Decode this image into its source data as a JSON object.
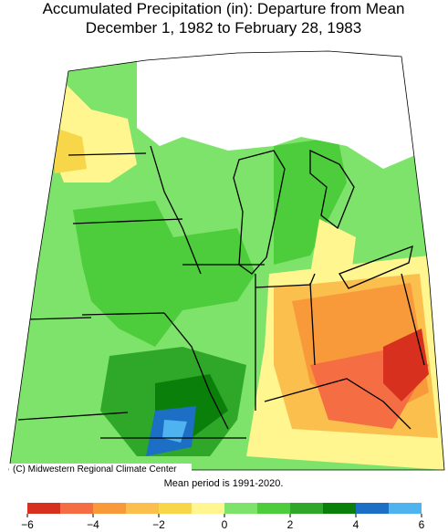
{
  "title": {
    "line1": "Accumulated Precipitation (in): Departure from Mean",
    "line2": "December 1, 1982 to February 28, 1983"
  },
  "credit": "(C) Midwestern Regional Climate Center",
  "note": "Mean period is 1991-2020.",
  "legend": {
    "bins": [
      -6,
      -5,
      -4,
      -3,
      -2,
      -1,
      0,
      1,
      2,
      3,
      4,
      5,
      6
    ],
    "colors": [
      "#d7301f",
      "#f46d43",
      "#f89a3a",
      "#fbbf4e",
      "#f7d64a",
      "#fff68f",
      "#7ee36a",
      "#4dcc3c",
      "#2fa82a",
      "#0a7f0a",
      "#1c6fc4",
      "#4fb3f0"
    ],
    "ticks": [
      {
        "value": -6,
        "label": "−6"
      },
      {
        "value": -4,
        "label": "−4"
      },
      {
        "value": -2,
        "label": "−2"
      },
      0,
      2,
      4,
      6
    ]
  }
}
